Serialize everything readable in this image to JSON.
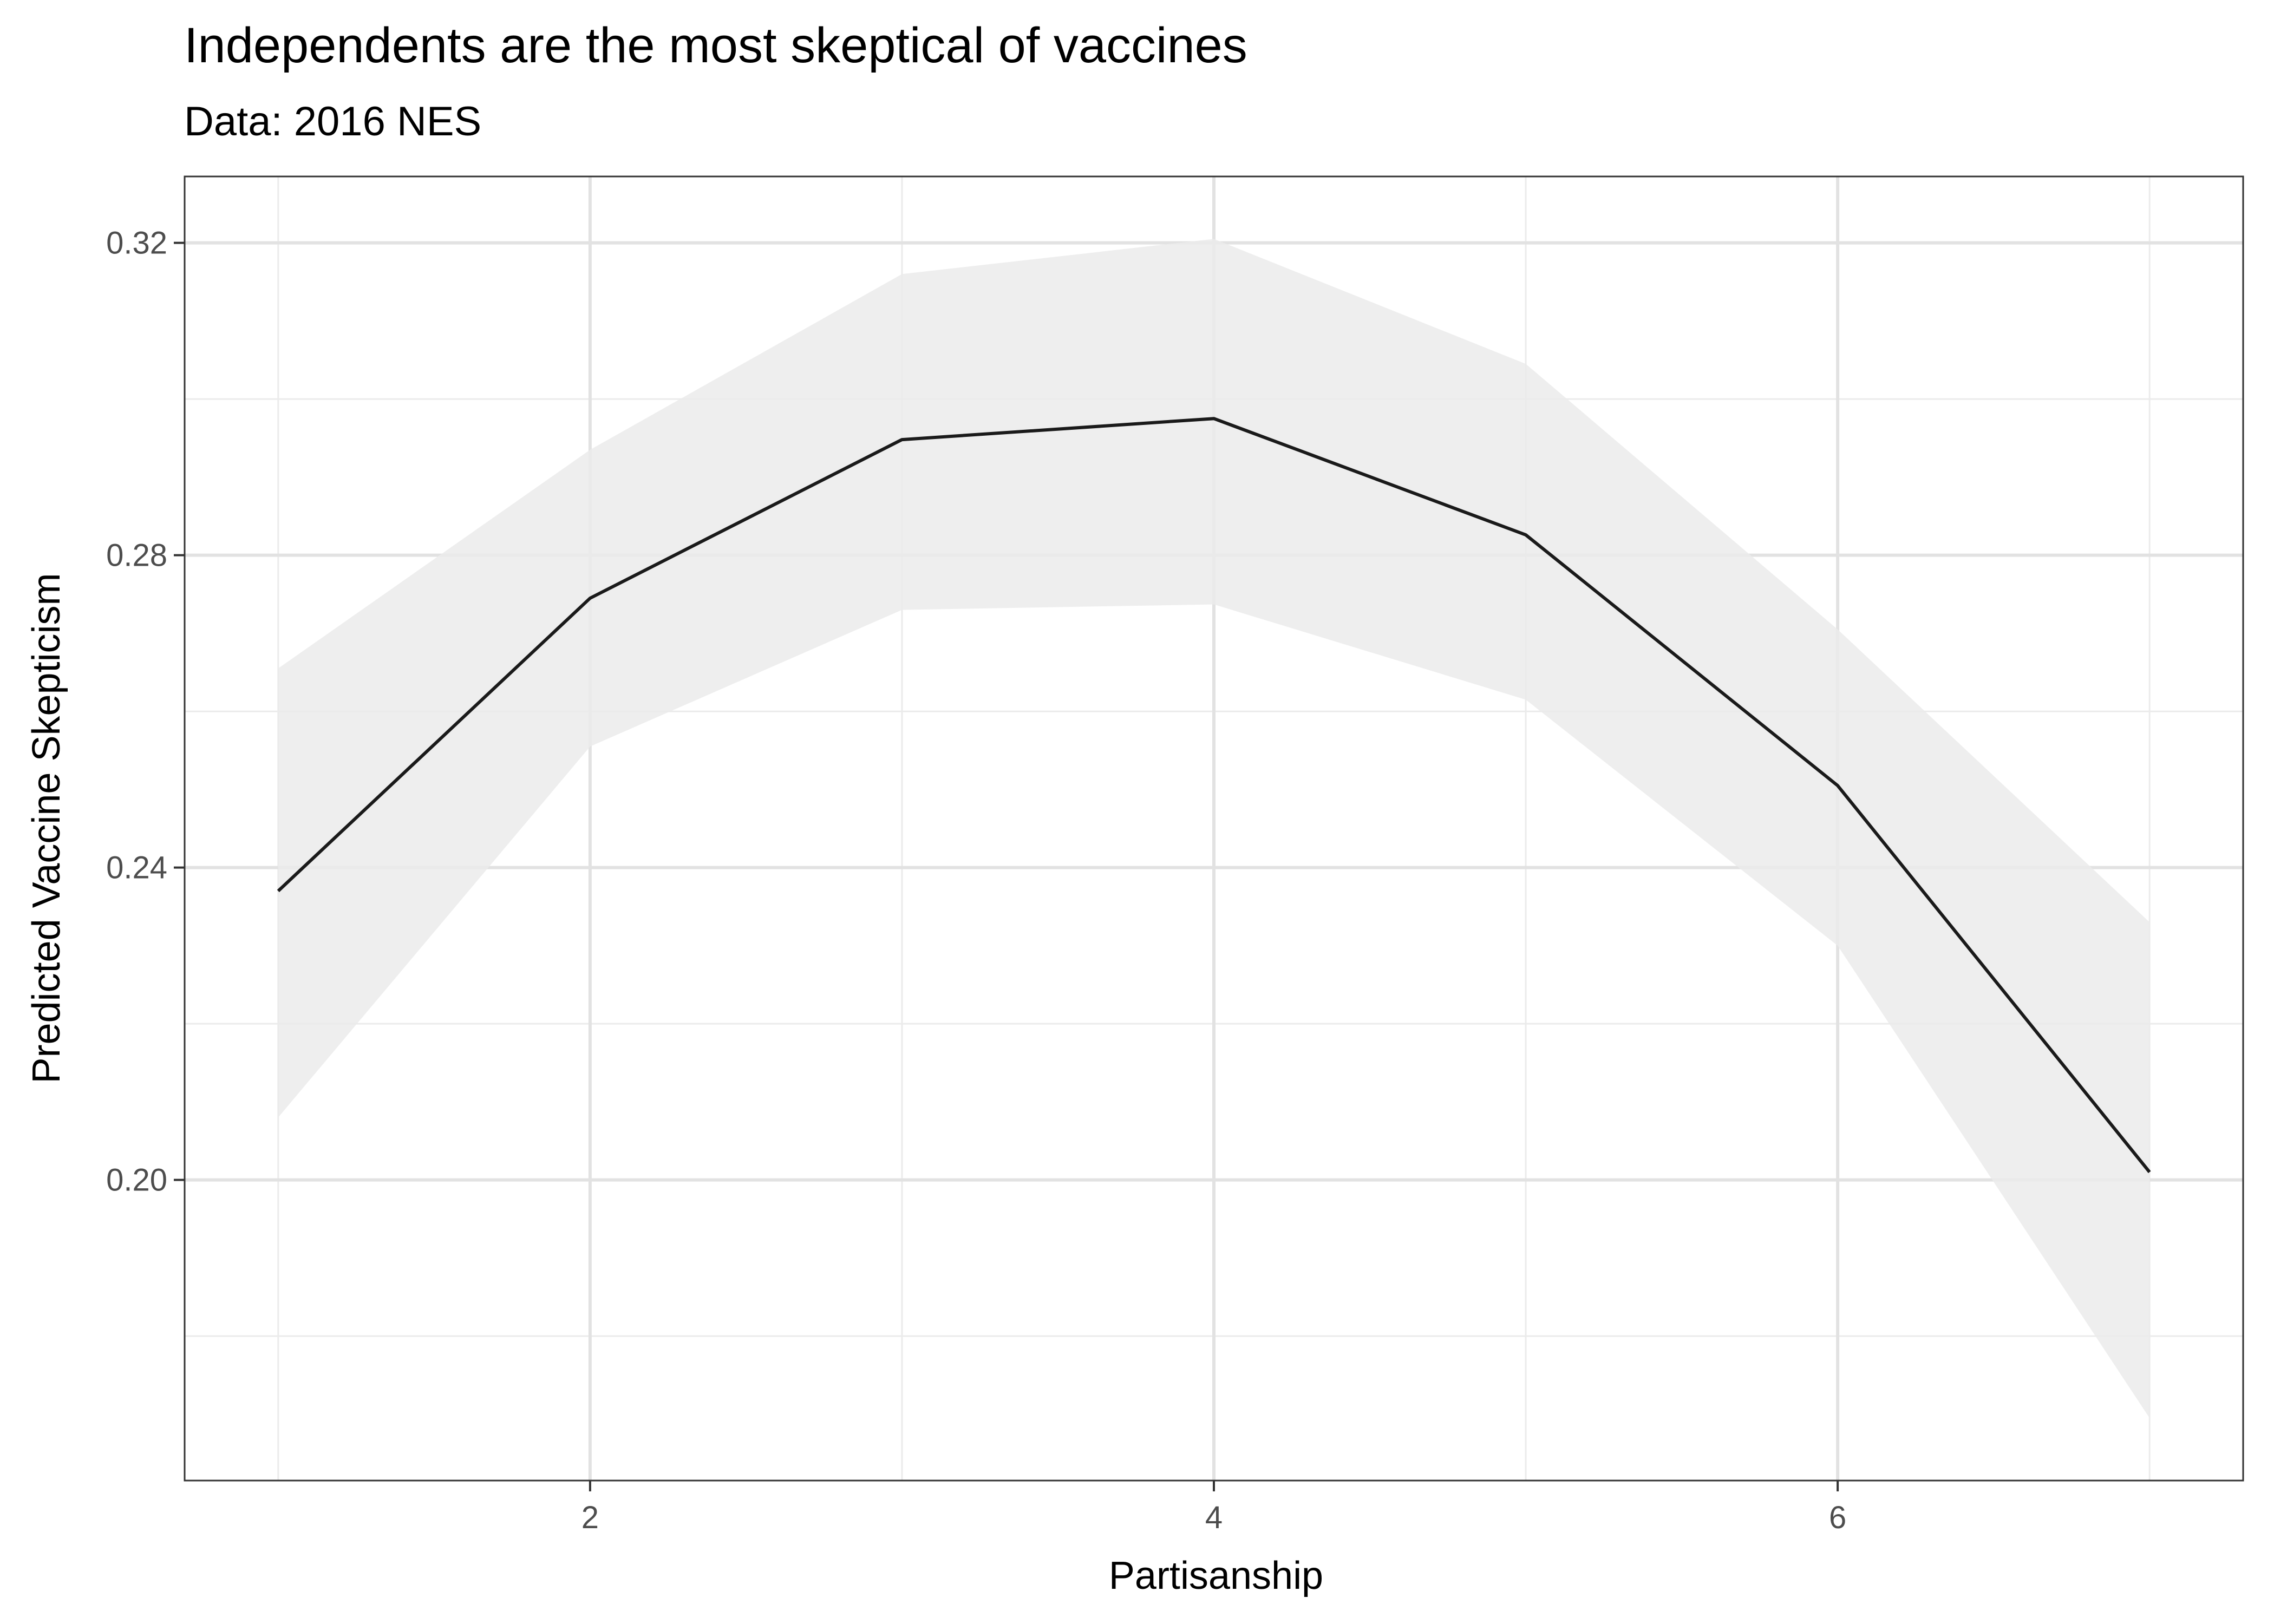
{
  "chart_data": {
    "type": "line",
    "title": "Independents are the most skeptical of vaccines",
    "subtitle": "Data: 2016 NES",
    "xlabel": "Partisanship",
    "ylabel": "Predicted Vaccine Skepticism",
    "xlim": [
      0.7,
      7.3
    ],
    "ylim": [
      0.1615,
      0.3285
    ],
    "x_ticks": [
      2,
      4,
      6
    ],
    "x_tick_labels": [
      "2",
      "4",
      "6"
    ],
    "x_minor_ticks": [
      1,
      3,
      5,
      7
    ],
    "y_ticks": [
      0.2,
      0.24,
      0.28,
      0.32
    ],
    "y_tick_labels": [
      "0.20",
      "0.24",
      "0.28",
      "0.32"
    ],
    "y_minor_ticks": [
      0.18,
      0.22,
      0.26,
      0.3
    ],
    "grid": true,
    "legend": "none",
    "series": [
      {
        "x": [
          1,
          2,
          3,
          4,
          5,
          6,
          7
        ],
        "y": [
          0.237,
          0.2745,
          0.2948,
          0.2975,
          0.2826,
          0.2505,
          0.201
        ],
        "lower": [
          0.208,
          0.2555,
          0.273,
          0.2737,
          0.2615,
          0.23,
          0.1695
        ],
        "upper": [
          0.2655,
          0.2935,
          0.316,
          0.3205,
          0.3045,
          0.2705,
          0.233
        ],
        "color": "#1a1a1a",
        "ribbon_color": "#ebebeb"
      }
    ]
  }
}
